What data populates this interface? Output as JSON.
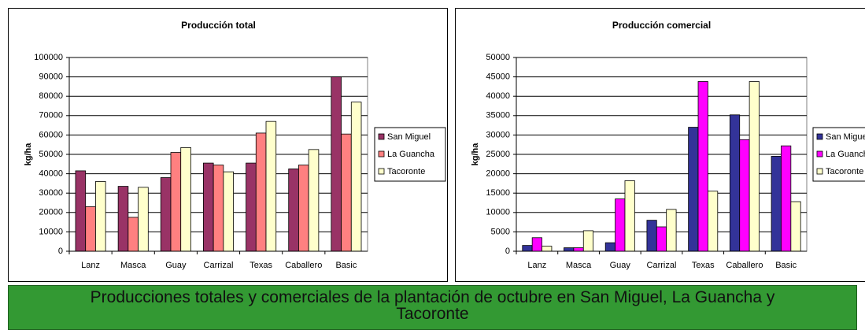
{
  "chart_data": [
    {
      "type": "bar",
      "title": "Producción total",
      "y_label": "kg/ha",
      "categories": [
        "Lanz",
        "Masca",
        "Guay",
        "Carrizal",
        "Texas",
        "Caballero",
        "Basic"
      ],
      "series": [
        {
          "name": "San Miguel",
          "color": "#993366",
          "values": [
            41500,
            33500,
            38000,
            45500,
            45500,
            42500,
            90000
          ]
        },
        {
          "name": "La Guancha",
          "color": "#ff8080",
          "values": [
            23000,
            17500,
            51000,
            44500,
            61000,
            44500,
            60500
          ]
        },
        {
          "name": "Tacoronte",
          "color": "#ffffcc",
          "values": [
            36000,
            33000,
            53500,
            41000,
            67000,
            52500,
            77000
          ]
        }
      ],
      "ylim": [
        0,
        100000
      ],
      "yticks": [
        0,
        10000,
        20000,
        30000,
        40000,
        50000,
        60000,
        70000,
        80000,
        90000,
        100000
      ],
      "grid": true
    },
    {
      "type": "bar",
      "title": "Producción comercial",
      "y_label": "kg/ha",
      "categories": [
        "Lanz",
        "Masca",
        "Guay",
        "Carrizal",
        "Texas",
        "Caballero",
        "Basic"
      ],
      "series": [
        {
          "name": "San Miguel",
          "color": "#333399",
          "values": [
            1500,
            900,
            2200,
            8000,
            32000,
            35200,
            24500
          ]
        },
        {
          "name": "La Guancha",
          "color": "#ff00ff",
          "values": [
            3500,
            900,
            13500,
            6300,
            43800,
            28800,
            27200
          ]
        },
        {
          "name": "Tacoronte",
          "color": "#ffffcc",
          "values": [
            1300,
            5300,
            18200,
            10800,
            15500,
            43800,
            12800
          ]
        }
      ],
      "ylim": [
        0,
        50000
      ],
      "yticks": [
        0,
        5000,
        10000,
        15000,
        20000,
        25000,
        30000,
        35000,
        40000,
        45000,
        50000
      ],
      "grid": true
    }
  ],
  "caption": "Producciones totales y comerciales de la plantación de octubre en San Miguel, La Guancha y Tacoronte"
}
